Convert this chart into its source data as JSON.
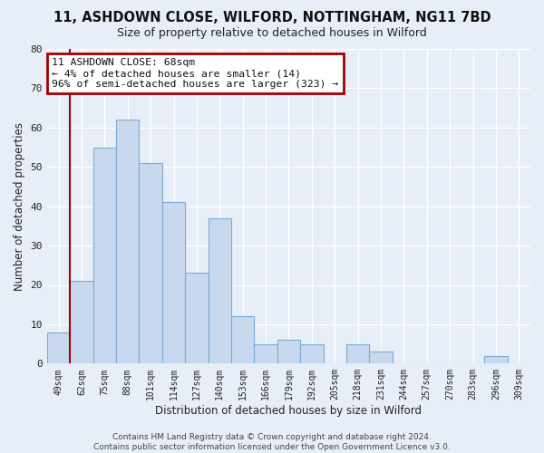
{
  "title": "11, ASHDOWN CLOSE, WILFORD, NOTTINGHAM, NG11 7BD",
  "subtitle": "Size of property relative to detached houses in Wilford",
  "xlabel": "Distribution of detached houses by size in Wilford",
  "ylabel": "Number of detached properties",
  "bar_labels": [
    "49sqm",
    "62sqm",
    "75sqm",
    "88sqm",
    "101sqm",
    "114sqm",
    "127sqm",
    "140sqm",
    "153sqm",
    "166sqm",
    "179sqm",
    "192sqm",
    "205sqm",
    "218sqm",
    "231sqm",
    "244sqm",
    "257sqm",
    "270sqm",
    "283sqm",
    "296sqm",
    "309sqm"
  ],
  "bar_values": [
    8,
    21,
    55,
    62,
    51,
    41,
    23,
    37,
    12,
    5,
    6,
    5,
    0,
    5,
    3,
    0,
    0,
    0,
    0,
    2,
    0
  ],
  "vline_x_index": 1,
  "vline_color": "#a00000",
  "bar_color": "#c8d9ef",
  "bar_edge_color": "#7aabd4",
  "ylim": [
    0,
    80
  ],
  "yticks": [
    0,
    10,
    20,
    30,
    40,
    50,
    60,
    70,
    80
  ],
  "annotation_lines": [
    "11 ASHDOWN CLOSE: 68sqm",
    "← 4% of detached houses are smaller (14)",
    "96% of semi-detached houses are larger (323) →"
  ],
  "footer_lines": [
    "Contains HM Land Registry data © Crown copyright and database right 2024.",
    "Contains public sector information licensed under the Open Government Licence v3.0."
  ],
  "bg_color": "#e8eef7",
  "plot_bg_color": "#e8eef7",
  "grid_color": "#ffffff",
  "ann_box_color": "#a00000",
  "ann_bg_color": "#ffffff"
}
